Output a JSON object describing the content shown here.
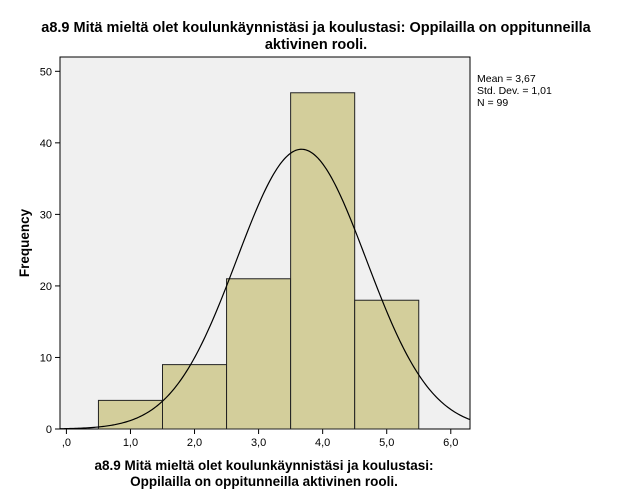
{
  "chart_data": {
    "type": "bar",
    "title_lines": [
      "a8.9 Mitä mieltä olet koulunkäynnistäsi ja koulustasi: Oppilailla on oppitunneilla",
      "aktivinen rooli."
    ],
    "xlabel_lines": [
      "a8.9 Mitä mieltä olet koulunkäynnistäsi ja koulustasi:",
      "Oppilailla on oppitunneilla aktivinen rooli."
    ],
    "ylabel": "Frequency",
    "bins": [
      {
        "center": 1,
        "value": 4
      },
      {
        "center": 2,
        "value": 9
      },
      {
        "center": 3,
        "value": 21
      },
      {
        "center": 4,
        "value": 47
      },
      {
        "center": 5,
        "value": 18
      }
    ],
    "bin_width": 1,
    "xlim": [
      -0.1,
      6.3
    ],
    "ylim": [
      0,
      52
    ],
    "x_ticks": [
      {
        "value": 0,
        "label": ",0"
      },
      {
        "value": 1,
        "label": "1,0"
      },
      {
        "value": 2,
        "label": "2,0"
      },
      {
        "value": 3,
        "label": "3,0"
      },
      {
        "value": 4,
        "label": "4,0"
      },
      {
        "value": 5,
        "label": "5,0"
      },
      {
        "value": 6,
        "label": "6,0"
      }
    ],
    "y_ticks": [
      0,
      10,
      20,
      30,
      40,
      50
    ],
    "normal_curve": {
      "mean": 3.67,
      "std": 1.01,
      "n": 99
    },
    "stats_lines": [
      "Mean = 3,67",
      "Std. Dev. = 1,01",
      "N = 99"
    ],
    "colors": {
      "bar_fill": "#d3ce9b",
      "bar_stroke": "#222222",
      "plot_bg": "#f0f0f0",
      "curve": "#000000"
    },
    "legend_position": "right"
  }
}
